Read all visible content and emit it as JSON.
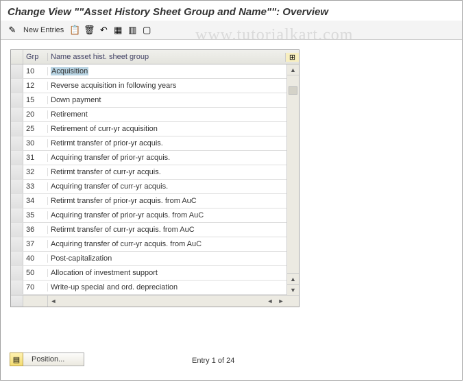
{
  "title": "Change View \"\"Asset History Sheet Group and Name\"\": Overview",
  "toolbar": {
    "newEntries": "New Entries"
  },
  "watermark": "www.tutorialkart.com",
  "table": {
    "headers": {
      "grp": "Grp",
      "name": "Name asset hist. sheet group"
    },
    "rows": [
      {
        "grp": "10",
        "name": "Acquisition",
        "highlighted": true
      },
      {
        "grp": "12",
        "name": "Reverse acquisition in following years"
      },
      {
        "grp": "15",
        "name": "Down payment"
      },
      {
        "grp": "20",
        "name": "Retirement"
      },
      {
        "grp": "25",
        "name": "Retirement of curr-yr acquisition"
      },
      {
        "grp": "30",
        "name": "Retirmt transfer of prior-yr acquis."
      },
      {
        "grp": "31",
        "name": "Acquiring transfer of prior-yr acquis."
      },
      {
        "grp": "32",
        "name": "Retirmt transfer of curr-yr acquis."
      },
      {
        "grp": "33",
        "name": "Acquiring transfer of curr-yr acquis."
      },
      {
        "grp": "34",
        "name": "Retirmt transfer of prior-yr acquis. from AuC"
      },
      {
        "grp": "35",
        "name": "Acquiring transfer of prior-yr acquis. from AuC"
      },
      {
        "grp": "36",
        "name": "Retirmt transfer of curr-yr acquis. from AuC"
      },
      {
        "grp": "37",
        "name": "Acquiring transfer of curr-yr acquis. from AuC"
      },
      {
        "grp": "40",
        "name": "Post-capitalization"
      },
      {
        "grp": "50",
        "name": "Allocation of investment support"
      },
      {
        "grp": "70",
        "name": "Write-up special and ord. depreciation"
      }
    ]
  },
  "footer": {
    "positionLabel": "Position...",
    "entryText": "Entry 1 of 24"
  },
  "colors": {
    "headerBg": "#e4e4de",
    "highlight": "#b8d4e3",
    "border": "#a0a0a0"
  }
}
